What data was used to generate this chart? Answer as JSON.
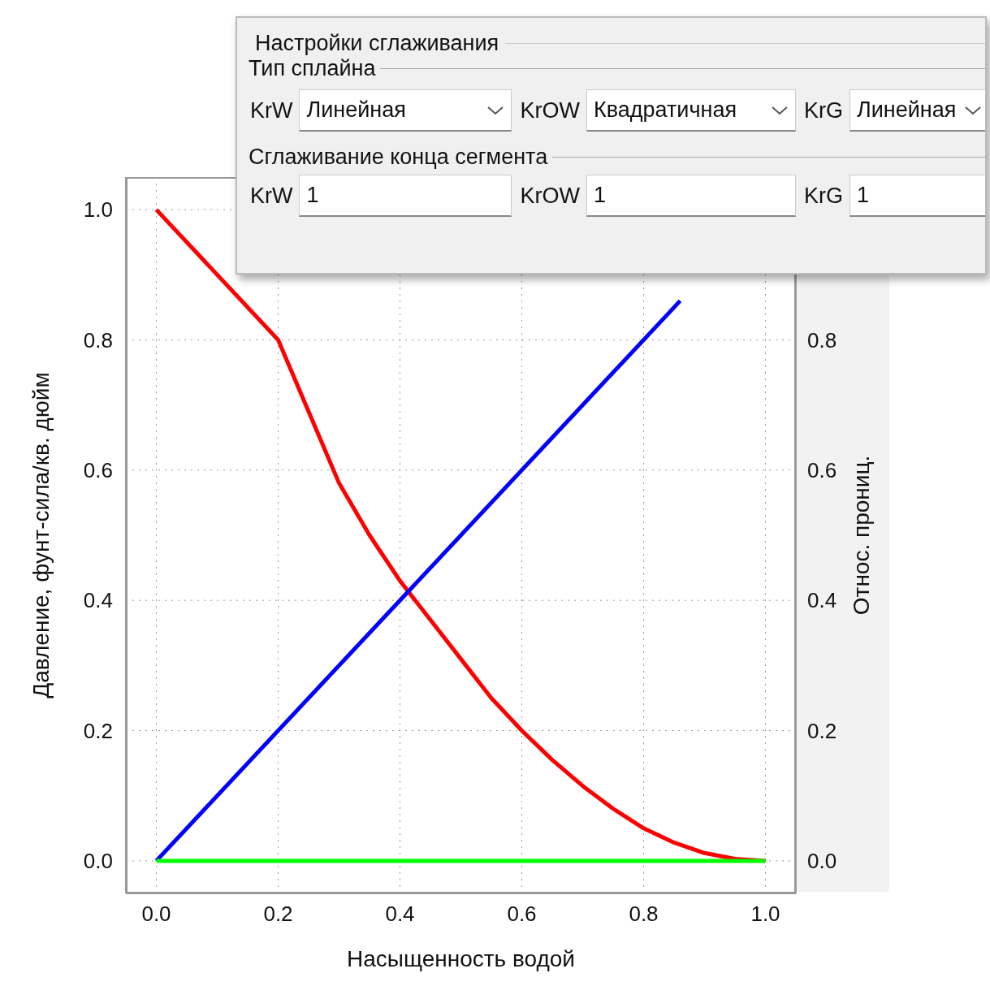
{
  "chart_data": {
    "type": "line",
    "xlabel": "Насыщенность водой",
    "ylabel": "Давление, фунт-сила/кв. дюйм",
    "y2label": "Относ. прониц.",
    "series": [
      {
        "color": "#ff0000",
        "x": [
          0,
          0.2,
          0.25,
          0.3,
          0.35,
          0.4,
          0.45,
          0.5,
          0.55,
          0.6,
          0.65,
          0.7,
          0.75,
          0.8,
          0.85,
          0.9,
          0.95,
          1.0
        ],
        "values": [
          1.0,
          0.8,
          0.69,
          0.58,
          0.5,
          0.43,
          0.37,
          0.31,
          0.25,
          0.2,
          0.155,
          0.115,
          0.08,
          0.05,
          0.028,
          0.012,
          0.003,
          0
        ]
      },
      {
        "color": "#0000ff",
        "x": [
          0,
          0.86
        ],
        "values": [
          0,
          0.86
        ]
      },
      {
        "color": "#00ff00",
        "x": [
          0,
          1.0
        ],
        "values": [
          0,
          0
        ]
      }
    ],
    "xlim": [
      -0.05,
      1.05
    ],
    "xticks": [
      {
        "value": 0,
        "label": "0.0"
      },
      {
        "value": 0.2,
        "label": "0.2"
      },
      {
        "value": 0.4,
        "label": "0.4"
      },
      {
        "value": 0.6,
        "label": "0.6"
      },
      {
        "value": 0.8,
        "label": "0.8"
      },
      {
        "value": 1.0,
        "label": "1.0"
      }
    ],
    "ylim": [
      -0.05,
      1.05
    ],
    "yticks": [
      {
        "value": 0,
        "label": "0.0"
      },
      {
        "value": 0.2,
        "label": "0.2"
      },
      {
        "value": 0.4,
        "label": "0.4"
      },
      {
        "value": 0.6,
        "label": "0.6"
      },
      {
        "value": 0.8,
        "label": "0.8"
      },
      {
        "value": 1.0,
        "label": "1.0"
      }
    ],
    "y2lim": [
      -0.05,
      1.05
    ],
    "y2ticks": [
      {
        "value": 0,
        "label": "0.0"
      },
      {
        "value": 0.2,
        "label": "0.2"
      },
      {
        "value": 0.4,
        "label": "0.4"
      },
      {
        "value": 0.6,
        "label": "0.6"
      },
      {
        "value": 0.8,
        "label": "0.8"
      }
    ],
    "grid": true,
    "legend": false,
    "line_style": "solid",
    "marker": "none",
    "annotations": [
      "Настройки сглаживания",
      "Тип сплайна",
      "KrW",
      "Линейная",
      "KrOW",
      "Квадратичная",
      "KrG",
      "Линейная",
      "Сглаживание конца сегмента",
      "KrW",
      "1",
      "KrOW",
      "1",
      "KrG",
      "1"
    ]
  }
}
